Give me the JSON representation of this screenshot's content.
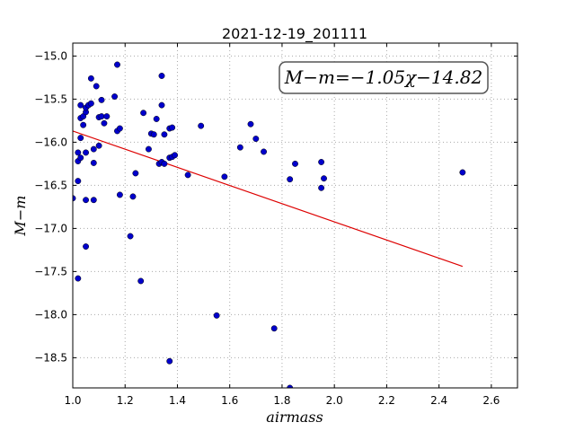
{
  "chart_data": {
    "type": "scatter",
    "title": "2021-12-19_201111",
    "xlabel": "airmass",
    "ylabel": "M−m",
    "xlim": [
      1.0,
      2.7
    ],
    "ylim": [
      -18.85,
      -14.85
    ],
    "y_inverted": true,
    "grid": true,
    "xticks": [
      1.0,
      1.2,
      1.4,
      1.6,
      1.8,
      2.0,
      2.2,
      2.4,
      2.6
    ],
    "xtick_labels": [
      "1.0",
      "1.2",
      "1.4",
      "1.6",
      "1.8",
      "2.0",
      "2.2",
      "2.4",
      "2.6"
    ],
    "yticks": [
      -15.0,
      -15.5,
      -16.0,
      -16.5,
      -17.0,
      -17.5,
      -18.0,
      -18.5
    ],
    "ytick_labels": [
      "−15.0",
      "−15.5",
      "−16.0",
      "−16.5",
      "−17.0",
      "−17.5",
      "−18.0",
      "−18.5"
    ],
    "annotation": "M−m=−1.05χ−14.82",
    "annotation_position": "top-right",
    "colors": {
      "points": "#0000cc",
      "fit_line": "#dd0000",
      "grid": "#aaaaaa"
    },
    "series": [
      {
        "type": "scatter",
        "points": [
          [
            1.0,
            -16.65
          ],
          [
            1.02,
            -16.45
          ],
          [
            1.02,
            -17.58
          ],
          [
            1.02,
            -16.12
          ],
          [
            1.02,
            -16.22
          ],
          [
            1.03,
            -16.18
          ],
          [
            1.03,
            -15.95
          ],
          [
            1.03,
            -15.72
          ],
          [
            1.03,
            -15.57
          ],
          [
            1.04,
            -15.8
          ],
          [
            1.04,
            -15.7
          ],
          [
            1.05,
            -15.65
          ],
          [
            1.05,
            -15.6
          ],
          [
            1.05,
            -16.12
          ],
          [
            1.05,
            -16.67
          ],
          [
            1.05,
            -17.21
          ],
          [
            1.06,
            -15.57
          ],
          [
            1.07,
            -15.26
          ],
          [
            1.07,
            -15.55
          ],
          [
            1.08,
            -16.24
          ],
          [
            1.08,
            -16.67
          ],
          [
            1.08,
            -16.08
          ],
          [
            1.09,
            -15.35
          ],
          [
            1.1,
            -15.71
          ],
          [
            1.1,
            -16.04
          ],
          [
            1.11,
            -15.51
          ],
          [
            1.11,
            -15.7
          ],
          [
            1.12,
            -15.78
          ],
          [
            1.13,
            -15.7
          ],
          [
            1.16,
            -15.47
          ],
          [
            1.17,
            -15.87
          ],
          [
            1.17,
            -15.1
          ],
          [
            1.18,
            -16.61
          ],
          [
            1.18,
            -15.84
          ],
          [
            1.22,
            -17.09
          ],
          [
            1.23,
            -16.63
          ],
          [
            1.24,
            -16.36
          ],
          [
            1.26,
            -17.61
          ],
          [
            1.27,
            -15.66
          ],
          [
            1.29,
            -16.08
          ],
          [
            1.3,
            -15.9
          ],
          [
            1.31,
            -15.91
          ],
          [
            1.32,
            -15.73
          ],
          [
            1.33,
            -16.25
          ],
          [
            1.34,
            -15.23
          ],
          [
            1.34,
            -15.57
          ],
          [
            1.34,
            -16.23
          ],
          [
            1.35,
            -15.91
          ],
          [
            1.35,
            -16.25
          ],
          [
            1.37,
            -16.18
          ],
          [
            1.37,
            -15.84
          ],
          [
            1.37,
            -18.54
          ],
          [
            1.38,
            -15.83
          ],
          [
            1.38,
            -16.17
          ],
          [
            1.39,
            -16.15
          ],
          [
            1.44,
            -16.38
          ],
          [
            1.49,
            -15.81
          ],
          [
            1.55,
            -18.01
          ],
          [
            1.58,
            -16.4
          ],
          [
            1.64,
            -16.06
          ],
          [
            1.68,
            -15.79
          ],
          [
            1.7,
            -15.96
          ],
          [
            1.73,
            -16.11
          ],
          [
            1.77,
            -18.16
          ],
          [
            1.83,
            -18.85
          ],
          [
            1.83,
            -16.43
          ],
          [
            1.85,
            -16.25
          ],
          [
            1.95,
            -16.53
          ],
          [
            1.95,
            -16.23
          ],
          [
            1.96,
            -16.42
          ],
          [
            2.49,
            -16.35
          ]
        ]
      },
      {
        "type": "line",
        "points": [
          [
            1.0,
            -15.87
          ],
          [
            2.49,
            -17.44
          ]
        ]
      }
    ]
  }
}
